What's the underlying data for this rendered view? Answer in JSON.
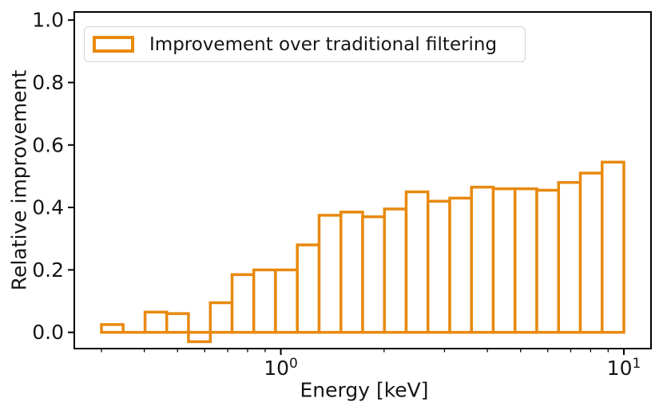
{
  "figure": {
    "background_color": "#ffffff",
    "text_color": "#151515",
    "spine_color": "#000000"
  },
  "chart_data": {
    "type": "bar",
    "subtype": "histogram-step-outline",
    "title": "",
    "xlabel": "Energy [keV]",
    "ylabel": "Relative improvement",
    "legend": {
      "label": "Improvement over traditional filtering",
      "position": "upper left"
    },
    "x_scale": "log",
    "xlim": [
      0.25,
      12
    ],
    "ylim": [
      -0.052,
      1.026
    ],
    "yticks": [
      "0.0",
      "0.2",
      "0.4",
      "0.6",
      "0.8",
      "1.0"
    ],
    "ytick_values": [
      0.0,
      0.2,
      0.4,
      0.6,
      0.8,
      1.0
    ],
    "xticks": [
      {
        "value": 1,
        "base": "10",
        "exp": "0"
      },
      {
        "value": 10,
        "base": "10",
        "exp": "1"
      }
    ],
    "x_minor_ticks": [
      0.3,
      0.4,
      0.5,
      0.6,
      0.7,
      0.8,
      0.9,
      2,
      3,
      4,
      5,
      6,
      7,
      8,
      9
    ],
    "bin_edges": [
      0.3,
      0.347,
      0.402,
      0.465,
      0.538,
      0.623,
      0.721,
      0.834,
      0.965,
      1.117,
      1.293,
      1.497,
      1.732,
      2.005,
      2.32,
      2.685,
      3.108,
      3.596,
      4.162,
      4.817,
      5.575,
      6.452,
      7.467,
      8.642,
      10.0
    ],
    "values": [
      0.025,
      0.0,
      0.065,
      0.06,
      -0.03,
      0.095,
      0.185,
      0.2,
      0.2,
      0.28,
      0.375,
      0.385,
      0.37,
      0.395,
      0.45,
      0.42,
      0.43,
      0.465,
      0.46,
      0.46,
      0.455,
      0.48,
      0.51,
      0.545
    ],
    "bar_edge_color": "#e8890f",
    "bar_face_color": "#ffffff",
    "bar_line_width": 3.5,
    "grid": false
  }
}
